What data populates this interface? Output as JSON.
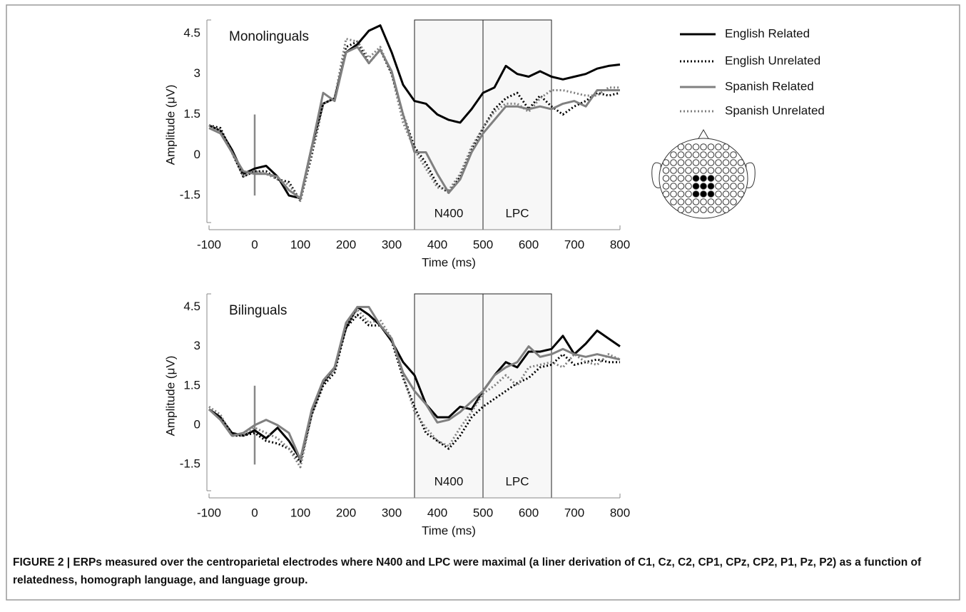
{
  "chart_data": [
    {
      "type": "line",
      "title": "Monolinguals",
      "xlabel": "Time (ms)",
      "ylabel": "Amplitude (μV)",
      "x": [
        -100,
        -75,
        -50,
        -25,
        0,
        25,
        50,
        75,
        100,
        125,
        150,
        175,
        200,
        225,
        250,
        275,
        300,
        325,
        350,
        375,
        400,
        425,
        450,
        475,
        500,
        525,
        550,
        575,
        600,
        625,
        650,
        675,
        700,
        725,
        750,
        775,
        800
      ],
      "xlim": [
        -100,
        800
      ],
      "xticks": [
        -100,
        0,
        100,
        200,
        300,
        400,
        500,
        600,
        700,
        800
      ],
      "ylim": [
        -2.5,
        5
      ],
      "yticks": [
        4.5,
        3,
        1.5,
        0,
        -1.5
      ],
      "windows": [
        {
          "label": "N400",
          "start": 350,
          "end": 500
        },
        {
          "label": "LPC",
          "start": 500,
          "end": 650
        }
      ],
      "onset_line": {
        "x": 0,
        "y": [
          -1.5,
          1.5
        ]
      },
      "legend": "right",
      "series": [
        {
          "name": "English Related",
          "color": "#000000",
          "dash": "solid",
          "values": [
            1.1,
            0.9,
            0.2,
            -0.7,
            -0.5,
            -0.4,
            -0.8,
            -1.5,
            -1.6,
            0.3,
            1.9,
            2.1,
            3.8,
            4.1,
            4.6,
            4.8,
            3.8,
            2.6,
            2.0,
            1.9,
            1.5,
            1.3,
            1.2,
            1.7,
            2.3,
            2.5,
            3.3,
            3.0,
            2.9,
            3.1,
            2.9,
            2.8,
            2.9,
            3.0,
            3.2,
            3.3,
            3.35
          ]
        },
        {
          "name": "English Unrelated",
          "color": "#000000",
          "dash": "dotted",
          "values": [
            1.1,
            1.0,
            0.1,
            -0.8,
            -0.6,
            -0.6,
            -0.9,
            -1.0,
            -1.7,
            0.0,
            1.9,
            2.1,
            4.0,
            4.2,
            3.4,
            3.9,
            3.0,
            1.5,
            0.3,
            -0.3,
            -1.1,
            -1.4,
            -0.8,
            0.2,
            1.0,
            1.7,
            2.1,
            2.3,
            1.7,
            2.2,
            1.8,
            1.5,
            1.8,
            2.0,
            2.3,
            2.2,
            2.3
          ]
        },
        {
          "name": "Spanish Related",
          "color": "#808080",
          "dash": "solid",
          "values": [
            1.0,
            0.8,
            0.1,
            -0.6,
            -0.7,
            -0.7,
            -0.8,
            -1.3,
            -1.6,
            0.3,
            2.3,
            2.0,
            3.8,
            4.0,
            3.4,
            3.9,
            3.1,
            1.5,
            0.1,
            0.1,
            -0.7,
            -1.4,
            -0.9,
            0.1,
            0.8,
            1.3,
            1.8,
            1.8,
            1.7,
            1.8,
            1.7,
            1.9,
            2.0,
            1.8,
            2.4,
            2.4,
            2.4
          ]
        },
        {
          "name": "Spanish Unrelated",
          "color": "#808080",
          "dash": "dotted",
          "values": [
            1.1,
            0.9,
            0.1,
            -0.8,
            -0.6,
            -0.7,
            -0.9,
            -1.1,
            -1.7,
            0.1,
            1.9,
            2.1,
            4.3,
            4.2,
            3.6,
            4.0,
            3.0,
            1.2,
            0.2,
            -0.5,
            -1.2,
            -1.3,
            -0.7,
            0.3,
            1.0,
            1.6,
            1.9,
            1.9,
            1.6,
            2.1,
            2.4,
            2.4,
            2.3,
            2.2,
            2.2,
            2.5,
            2.5
          ]
        }
      ]
    },
    {
      "type": "line",
      "title": "Bilinguals",
      "xlabel": "Time (ms)",
      "ylabel": "Amplitude (μV)",
      "x": [
        -100,
        -75,
        -50,
        -25,
        0,
        25,
        50,
        75,
        100,
        125,
        150,
        175,
        200,
        225,
        250,
        275,
        300,
        325,
        350,
        375,
        400,
        425,
        450,
        475,
        500,
        525,
        550,
        575,
        600,
        625,
        650,
        675,
        700,
        725,
        750,
        775,
        800
      ],
      "xlim": [
        -100,
        800
      ],
      "xticks": [
        -100,
        0,
        100,
        200,
        300,
        400,
        500,
        600,
        700,
        800
      ],
      "ylim": [
        -2.5,
        5
      ],
      "yticks": [
        4.5,
        3,
        1.5,
        0,
        -1.5
      ],
      "windows": [
        {
          "label": "N400",
          "start": 350,
          "end": 500
        },
        {
          "label": "LPC",
          "start": 500,
          "end": 650
        }
      ],
      "onset_line": {
        "x": 0,
        "y": [
          -1.5,
          1.5
        ]
      },
      "series": [
        {
          "color": "#000000",
          "dash": "solid",
          "values": [
            0.6,
            0.3,
            -0.3,
            -0.4,
            -0.2,
            -0.5,
            -0.1,
            -0.6,
            -1.3,
            0.5,
            1.6,
            2.2,
            3.7,
            4.5,
            4.2,
            3.8,
            3.2,
            2.4,
            1.9,
            0.8,
            0.3,
            0.3,
            0.7,
            0.6,
            1.3,
            1.9,
            2.4,
            2.2,
            2.8,
            2.8,
            2.9,
            3.4,
            2.7,
            3.1,
            3.6,
            3.3,
            3.0
          ]
        },
        {
          "color": "#000000",
          "dash": "dotted",
          "values": [
            0.6,
            0.3,
            -0.4,
            -0.4,
            -0.3,
            -0.6,
            -0.7,
            -0.9,
            -1.4,
            0.4,
            1.5,
            2.0,
            3.7,
            4.2,
            3.8,
            3.8,
            3.2,
            1.8,
            0.7,
            -0.3,
            -0.6,
            -0.9,
            -0.4,
            0.3,
            0.7,
            1.0,
            1.3,
            1.6,
            1.8,
            2.2,
            2.3,
            2.7,
            2.3,
            2.4,
            2.5,
            2.4,
            2.4
          ]
        },
        {
          "color": "#808080",
          "dash": "solid",
          "values": [
            0.6,
            0.2,
            -0.4,
            -0.3,
            0.0,
            0.2,
            0.0,
            -0.3,
            -1.3,
            0.6,
            1.7,
            2.2,
            3.9,
            4.5,
            4.5,
            3.8,
            3.3,
            2.0,
            1.3,
            0.8,
            0.1,
            0.2,
            0.5,
            0.9,
            1.3,
            1.9,
            2.2,
            2.4,
            3.0,
            2.6,
            2.7,
            2.9,
            2.7,
            2.6,
            2.7,
            2.6,
            2.5
          ]
        },
        {
          "color": "#808080",
          "dash": "dotted",
          "values": [
            0.7,
            0.4,
            -0.4,
            -0.4,
            -0.1,
            -0.3,
            -0.5,
            -0.9,
            -1.6,
            0.4,
            1.6,
            2.1,
            3.8,
            4.4,
            3.9,
            4.0,
            3.3,
            1.9,
            0.5,
            -0.1,
            -0.6,
            -0.8,
            -0.1,
            0.5,
            1.2,
            1.5,
            1.9,
            1.5,
            2.2,
            2.3,
            2.4,
            2.2,
            2.7,
            2.4,
            2.3,
            2.7,
            2.5
          ]
        }
      ]
    }
  ],
  "caption": "FIGURE 2 | ERPs measured over the centroparietal electrodes where N400 and LPC were maximal (a liner derivation of C1, Cz, C2, CP1, CPz, CP2, P1, Pz, P2) as a function of relatedness, homograph language, and language group."
}
